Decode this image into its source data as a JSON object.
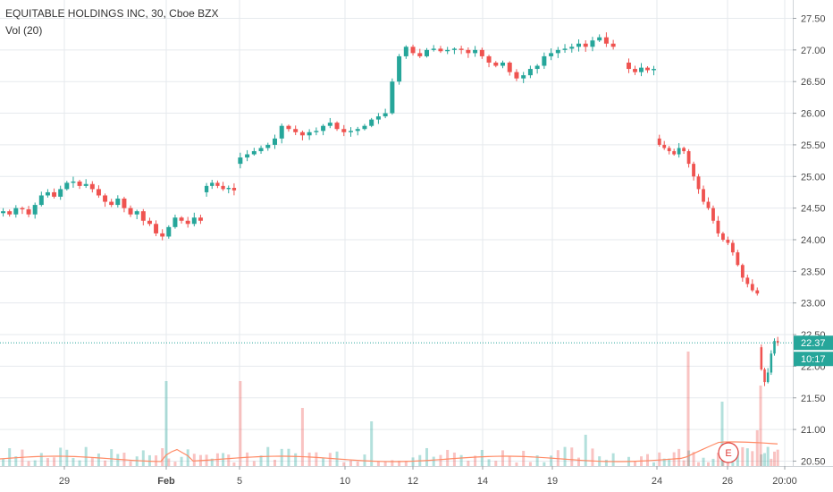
{
  "header": {
    "title": "EQUITABLE HOLDINGS INC, 30, Cboe BZX",
    "indicator": "Vol (20)"
  },
  "colors": {
    "up": "#26a69a",
    "down": "#ef5350",
    "grid": "#e6eaee",
    "price_line": "#26a69a",
    "volume_ma": "#ff8a65",
    "price_tag_bg": "#26a69a",
    "earnings_marker": "#e0403c"
  },
  "chart_data": {
    "type": "candlestick",
    "title": "EQUITABLE HOLDINGS INC, 30, Cboe BZX",
    "ylim": [
      20.45,
      27.62
    ],
    "y_ticks": [
      "27.50",
      "27.00",
      "26.50",
      "26.00",
      "25.50",
      "25.00",
      "24.50",
      "24.00",
      "23.50",
      "23.00",
      "22.50",
      "22.00",
      "21.50",
      "21.00",
      "20.50"
    ],
    "x_ticks": [
      "29",
      "Feb",
      "5",
      "10",
      "12",
      "14",
      "19",
      "24",
      "26",
      "20:00"
    ],
    "grid": true,
    "current_price": "22.37",
    "countdown": "10:17",
    "earnings_marker": "E",
    "series": [
      {
        "type": "price",
        "segments": [
          {
            "start": 24.42,
            "points": [
              24.45,
              24.4,
              24.5,
              24.48,
              24.4,
              24.55,
              24.7,
              24.75,
              24.68,
              24.8,
              24.9,
              24.92,
              24.85,
              24.88,
              24.8,
              24.7,
              24.6,
              24.55,
              24.65,
              24.5,
              24.4,
              24.45,
              24.3,
              24.25,
              24.1,
              24.05,
              24.2,
              24.35,
              24.3,
              24.25,
              24.35,
              24.3
            ]
          },
          {
            "start": 24.75,
            "points": [
              24.85,
              24.9,
              24.85,
              24.8,
              24.82,
              24.78
            ]
          },
          {
            "start": 25.2,
            "points": [
              25.3,
              25.35,
              25.4,
              25.45,
              25.5,
              25.6,
              25.8,
              25.75,
              25.7,
              25.65,
              25.7,
              25.72,
              25.8,
              25.85,
              25.75,
              25.7,
              25.72,
              25.75,
              25.8,
              25.9,
              25.95,
              26.0,
              26.5,
              26.9,
              27.05,
              26.95,
              26.9,
              27.0,
              27.02,
              26.98,
              27.0,
              27.02,
              27.0,
              26.95,
              27.0,
              26.9,
              26.8,
              26.75,
              26.8,
              26.65,
              26.55,
              26.6,
              26.7,
              26.75,
              26.9,
              26.95,
              27.0,
              27.02,
              27.05,
              27.1,
              27.05,
              27.15,
              27.2,
              27.1,
              27.05
            ]
          },
          {
            "start": 26.8,
            "points": [
              26.7,
              26.65,
              26.72,
              26.68,
              26.7
            ]
          },
          {
            "start": 25.6,
            "points": [
              25.5,
              25.45,
              25.4,
              25.35,
              25.45,
              25.4,
              25.2,
              25.0,
              24.8,
              24.6,
              24.5,
              24.3,
              24.1,
              24.0,
              23.95,
              23.8,
              23.6,
              23.4,
              23.3,
              23.2,
              23.15
            ]
          },
          {
            "start": 22.3,
            "points": [
              21.95,
              21.75,
              21.9,
              22.2,
              22.4,
              22.37
            ]
          }
        ]
      },
      {
        "type": "volume_ma",
        "name": "Vol (20)",
        "values": []
      }
    ]
  }
}
